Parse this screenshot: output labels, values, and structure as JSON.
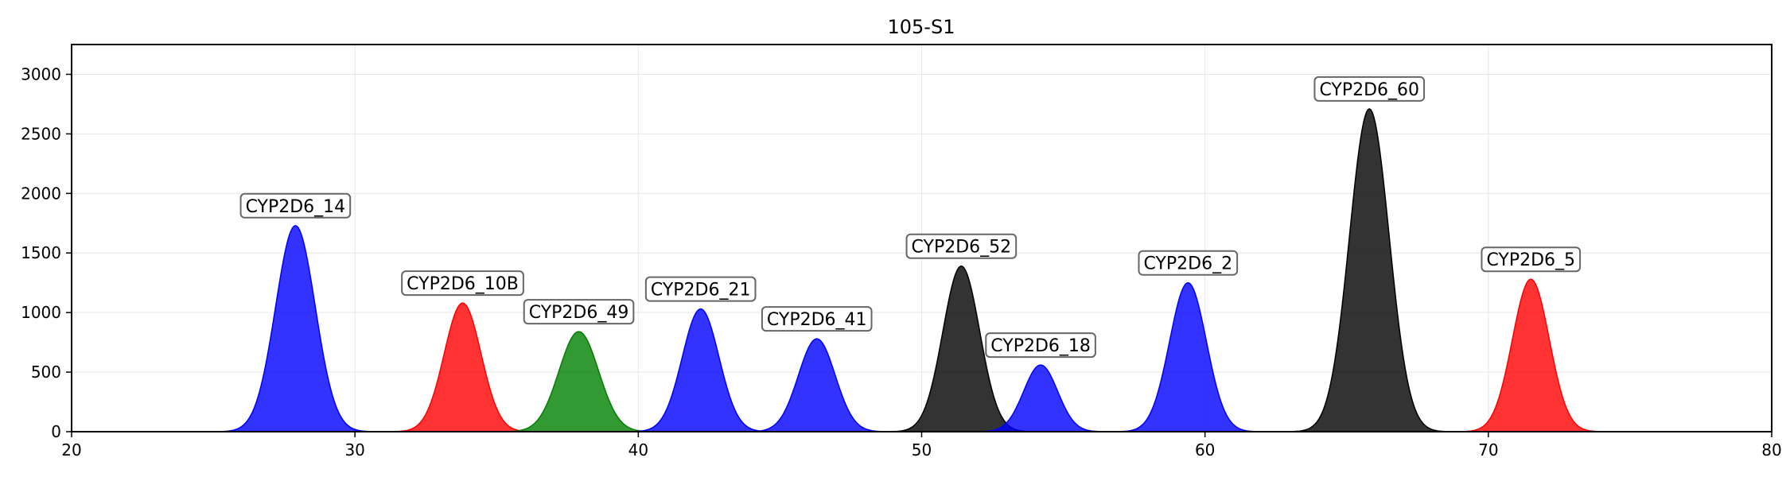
{
  "chart_data": {
    "type": "area",
    "title": "105-S1",
    "xlabel": "",
    "ylabel": "",
    "xlim": [
      20,
      80
    ],
    "ylim": [
      0,
      3250
    ],
    "xticks": [
      20,
      30,
      40,
      50,
      60,
      70,
      80
    ],
    "yticks": [
      0,
      500,
      1000,
      1500,
      2000,
      2500,
      3000
    ],
    "grid": true,
    "legend": "none",
    "peaks": [
      {
        "label": "CYP2D6_14",
        "x": 27.9,
        "height": 1730,
        "sigma": 0.7,
        "color": "#0000ff"
      },
      {
        "label": "CYP2D6_10B",
        "x": 33.8,
        "height": 1080,
        "sigma": 0.65,
        "color": "#ff0000"
      },
      {
        "label": "CYP2D6_49",
        "x": 37.9,
        "height": 840,
        "sigma": 0.7,
        "color": "#007f00"
      },
      {
        "label": "CYP2D6_21",
        "x": 42.2,
        "height": 1030,
        "sigma": 0.65,
        "color": "#0000ff"
      },
      {
        "label": "CYP2D6_41",
        "x": 46.3,
        "height": 780,
        "sigma": 0.65,
        "color": "#0000ff"
      },
      {
        "label": "CYP2D6_52",
        "x": 51.4,
        "height": 1390,
        "sigma": 0.65,
        "color": "#000000"
      },
      {
        "label": "CYP2D6_18",
        "x": 54.2,
        "height": 560,
        "sigma": 0.6,
        "color": "#0000ff"
      },
      {
        "label": "CYP2D6_2",
        "x": 59.4,
        "height": 1250,
        "sigma": 0.65,
        "color": "#0000ff"
      },
      {
        "label": "CYP2D6_60",
        "x": 65.8,
        "height": 2710,
        "sigma": 0.7,
        "color": "#000000"
      },
      {
        "label": "CYP2D6_5",
        "x": 71.5,
        "height": 1280,
        "sigma": 0.65,
        "color": "#ff0000"
      }
    ]
  }
}
